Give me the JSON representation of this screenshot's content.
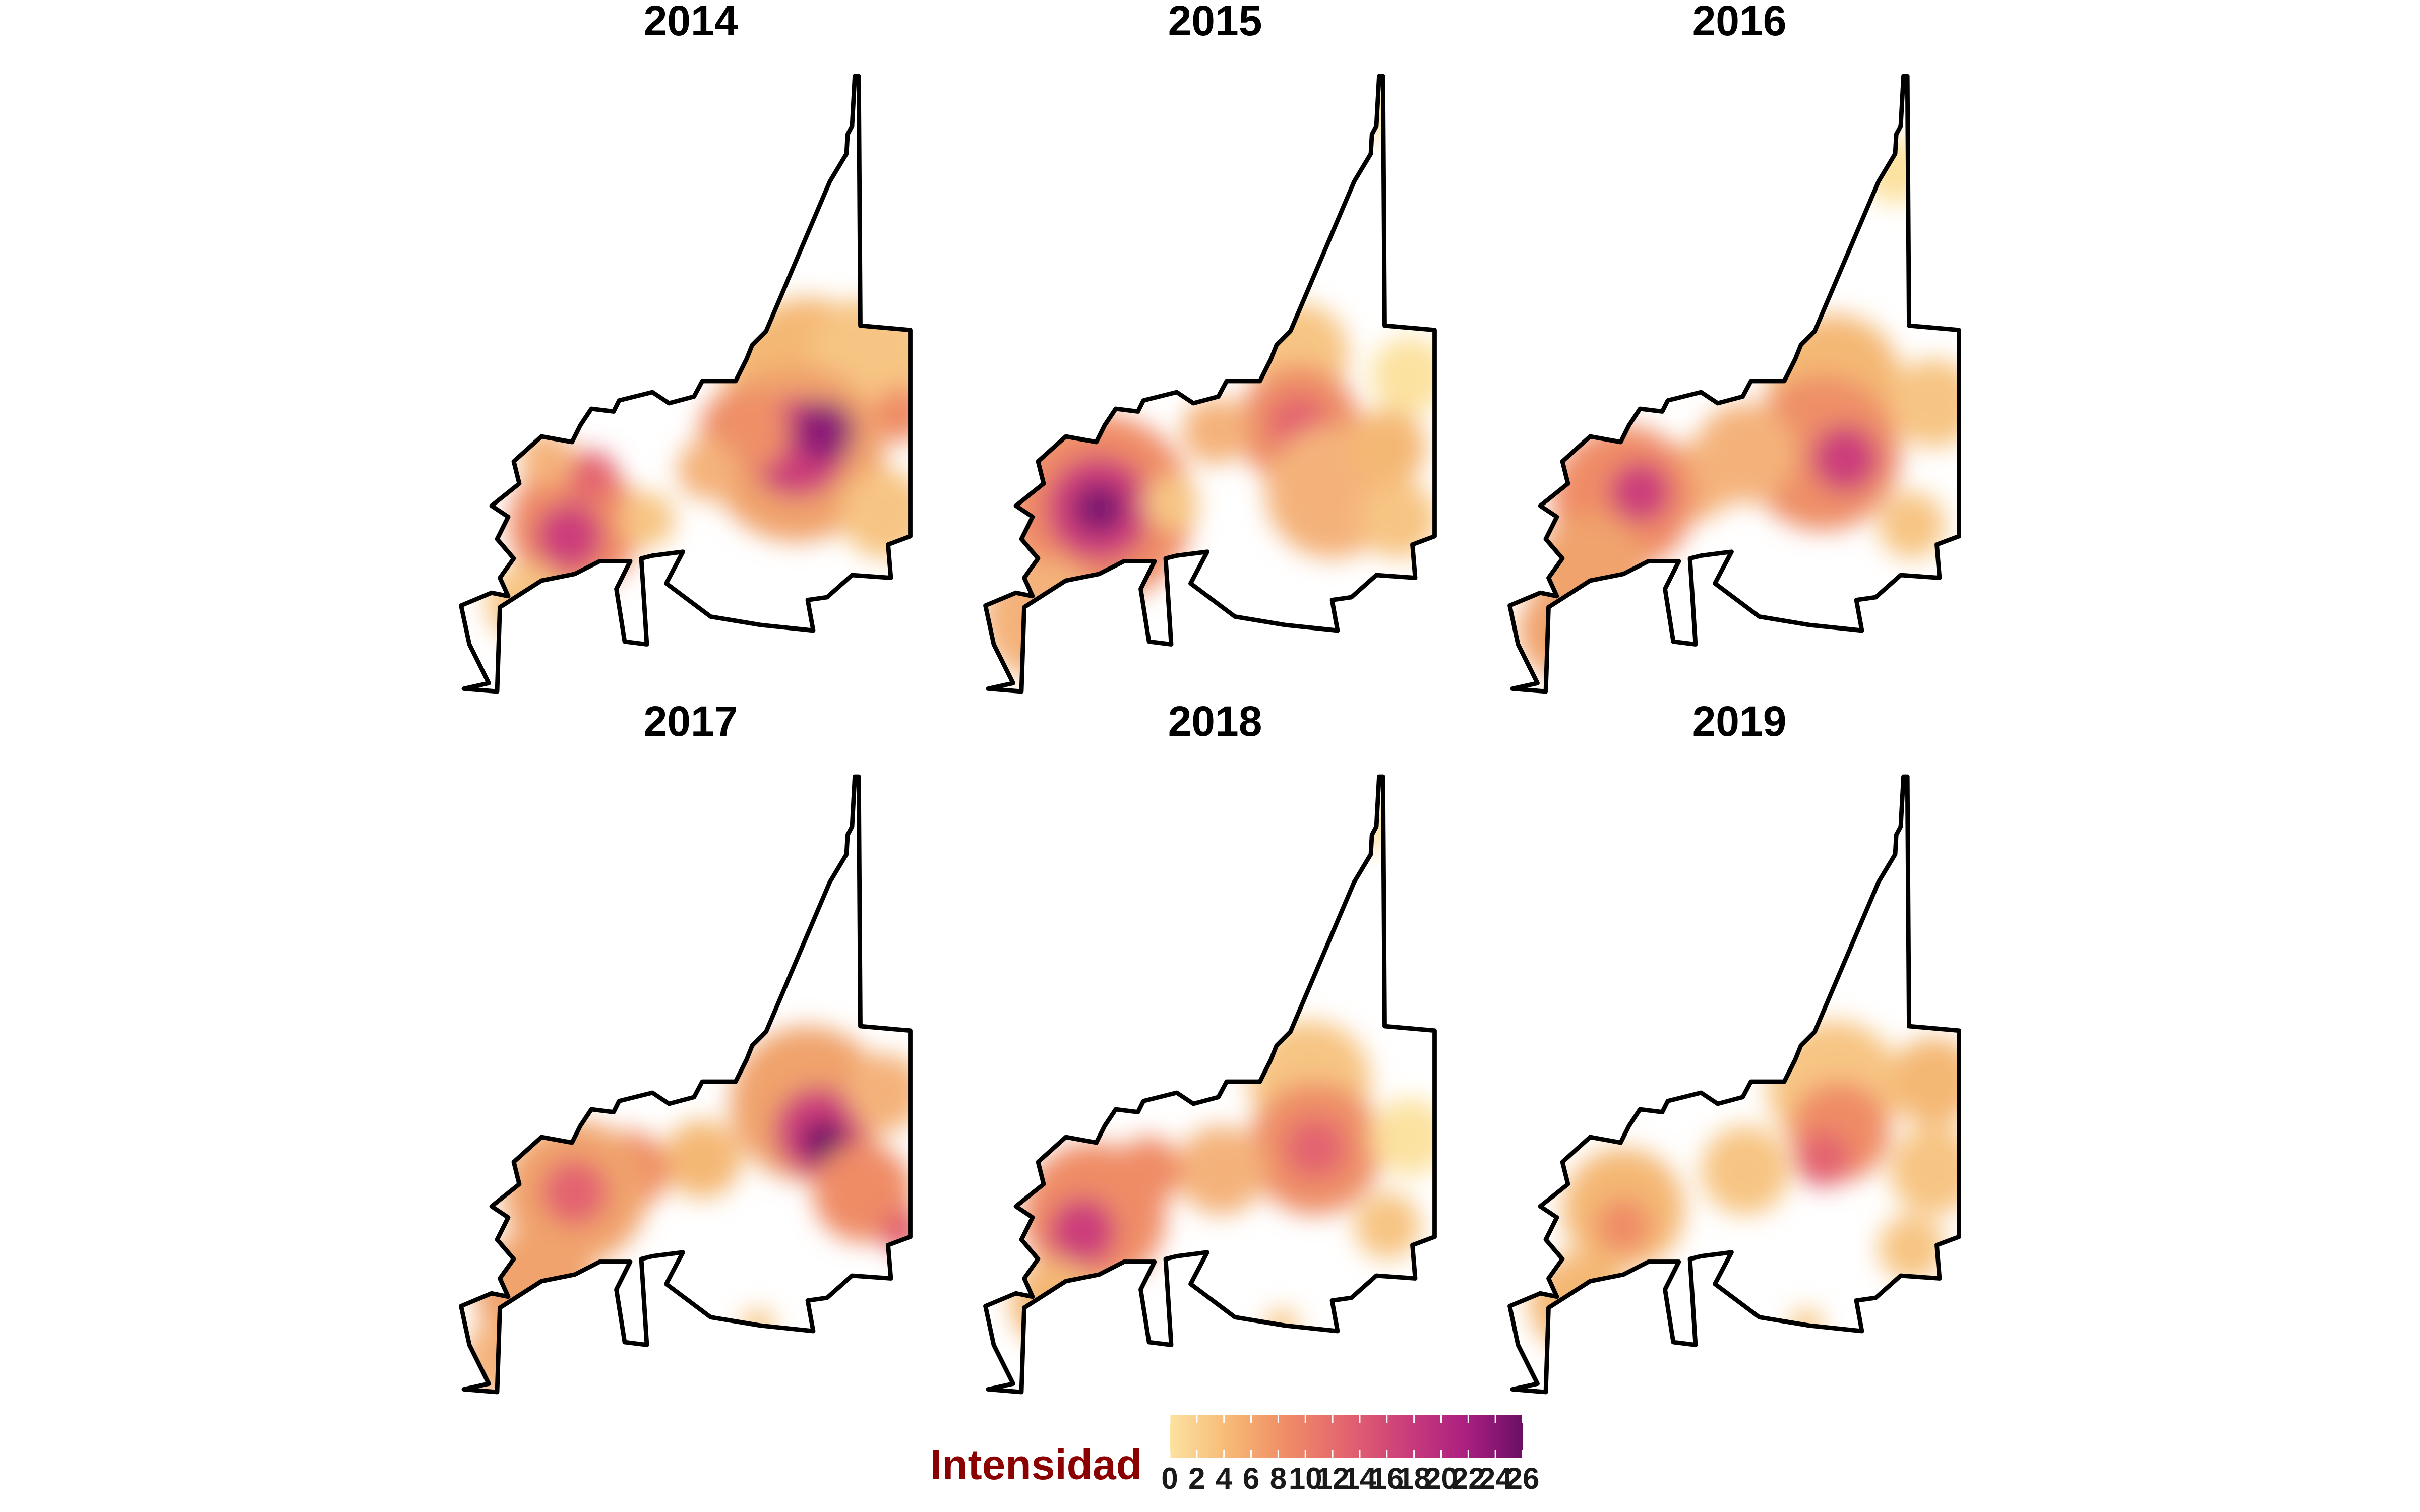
{
  "map": {
    "panels": [
      {
        "title": "2014"
      },
      {
        "title": "2015"
      },
      {
        "title": "2016"
      },
      {
        "title": "2017"
      },
      {
        "title": "2018"
      },
      {
        "title": "2019"
      }
    ]
  },
  "legend": {
    "title": "Intensidad",
    "title_color": "#8b0000",
    "min": 0,
    "max": 26,
    "ticks": [
      "0",
      "2",
      "4",
      "6",
      "8",
      "10",
      "12",
      "14",
      "16",
      "18",
      "20",
      "22",
      "24",
      "26"
    ],
    "colors": [
      "#fce2a0",
      "#f7b976",
      "#ef8c66",
      "#e3646f",
      "#cc3e7a",
      "#ac2081",
      "#6b0f66"
    ]
  }
}
